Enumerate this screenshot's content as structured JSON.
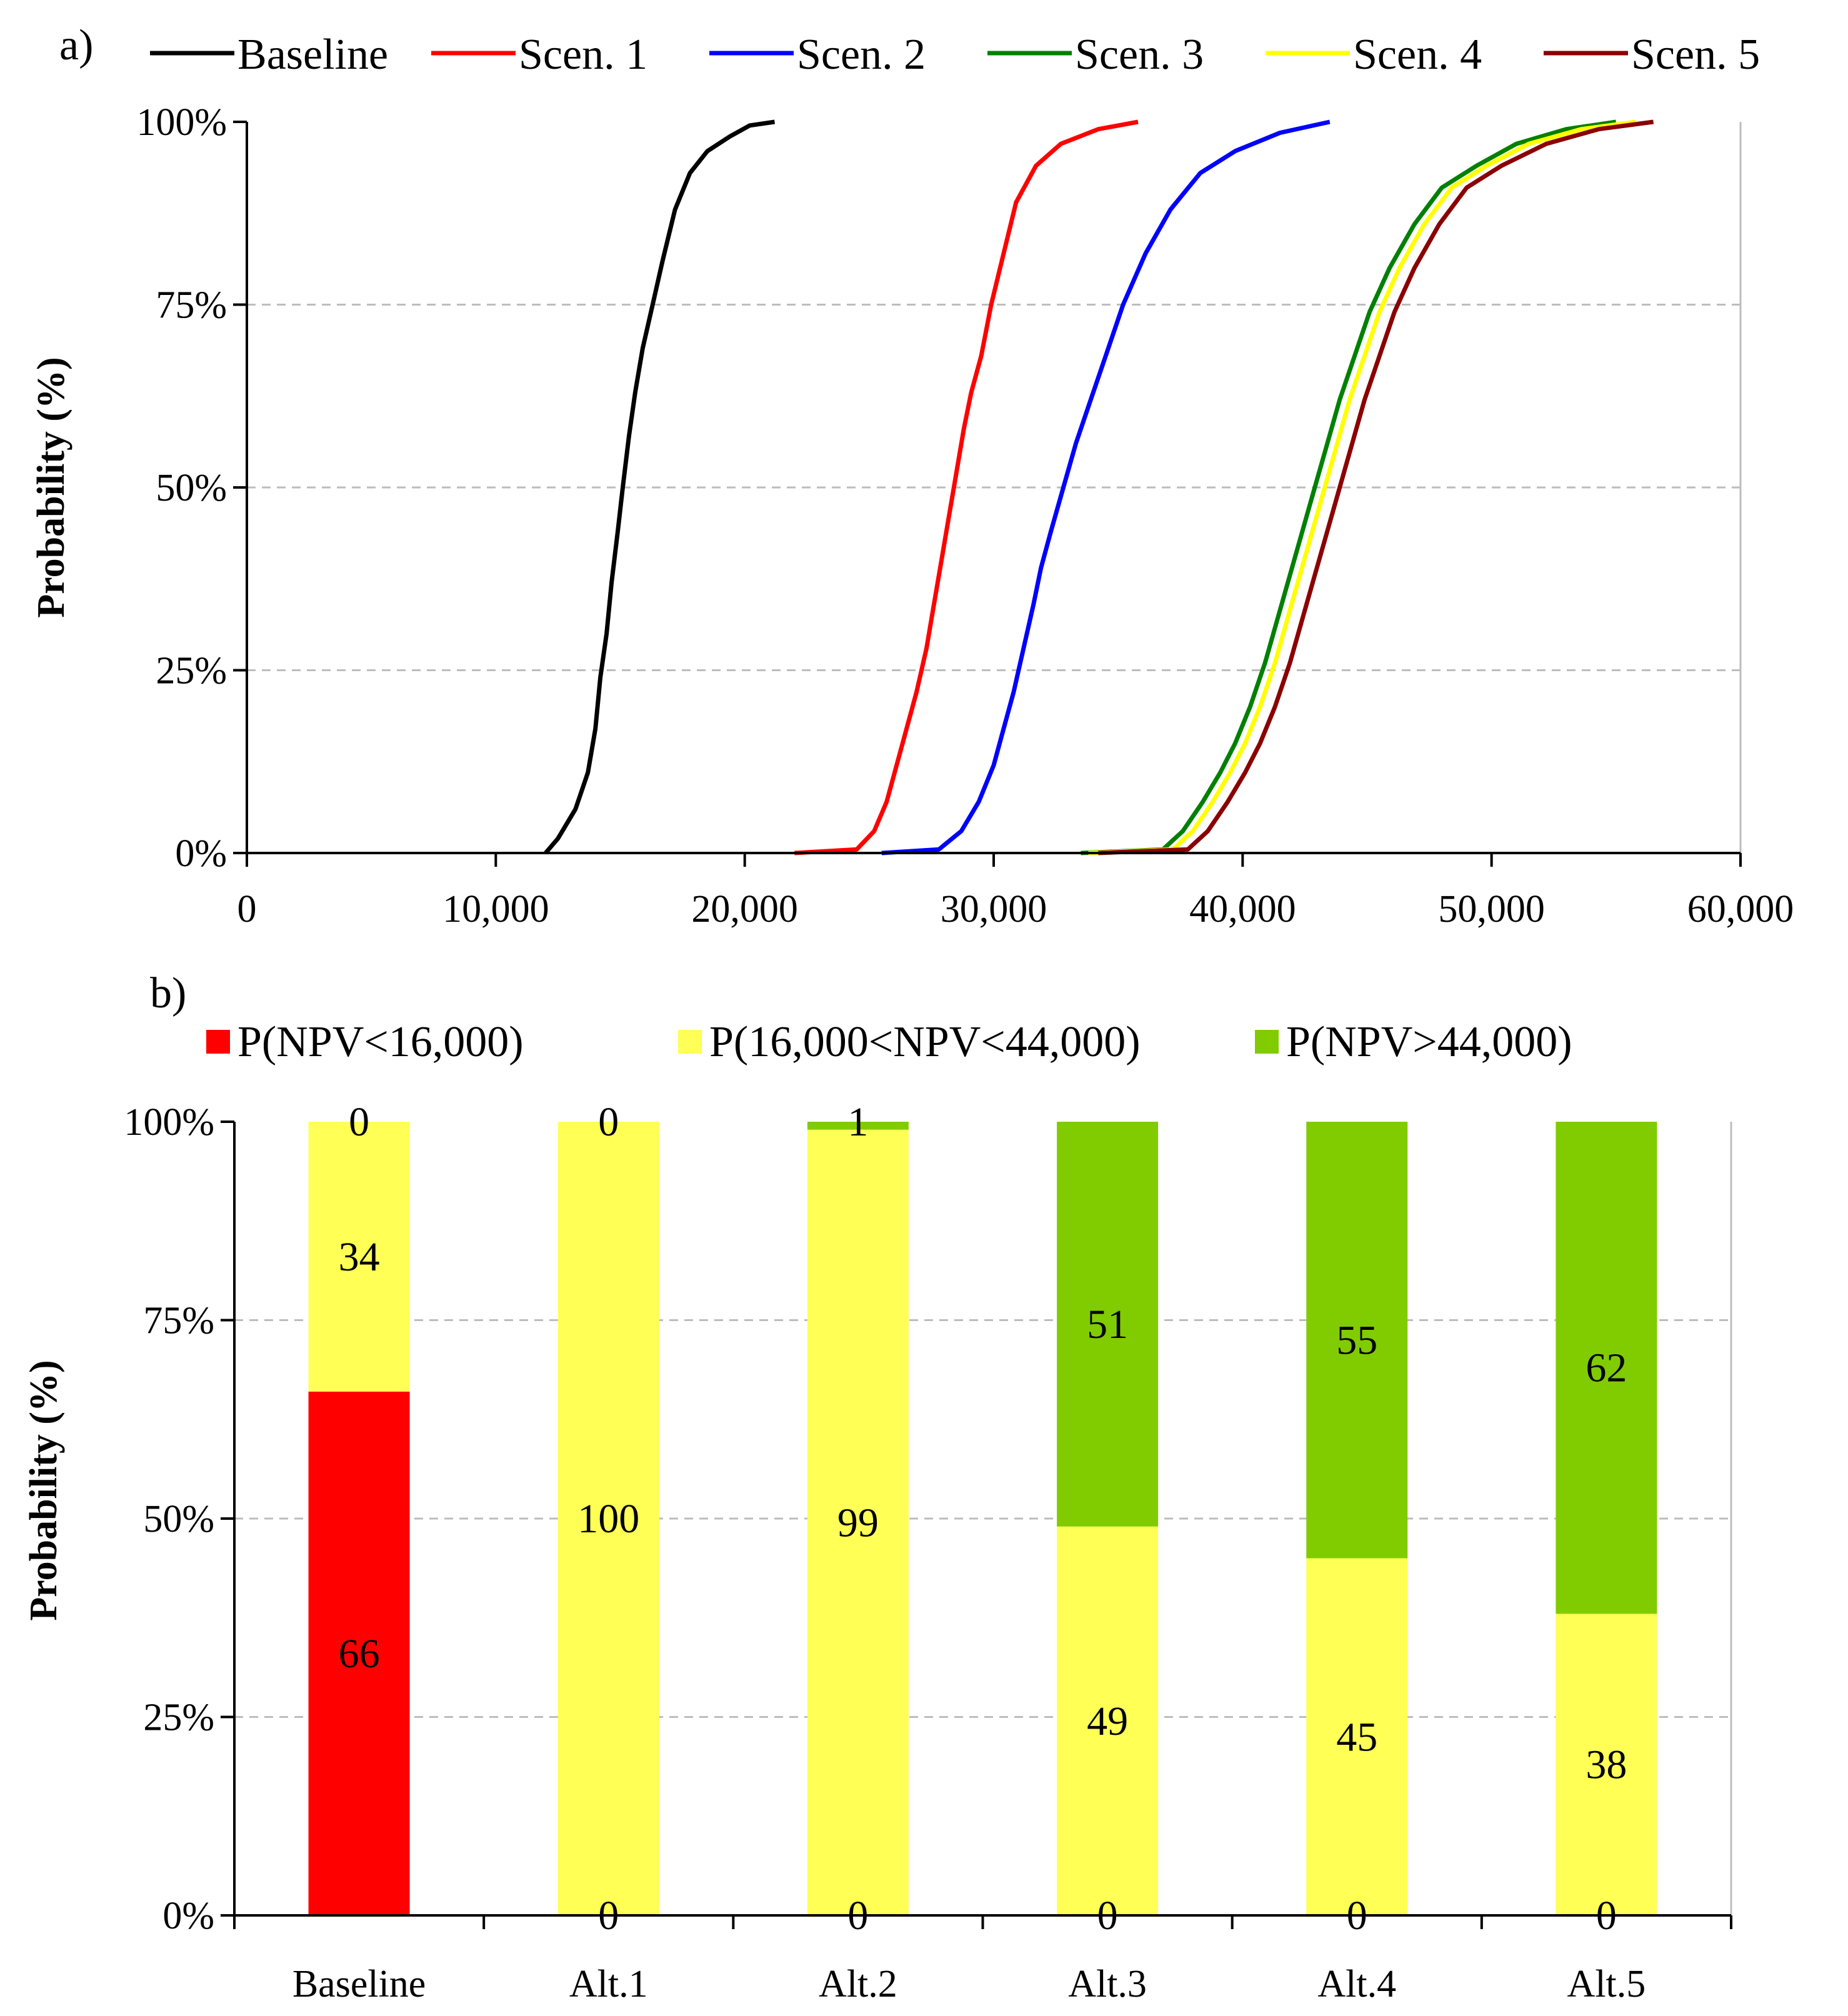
{
  "chart_data": [
    {
      "panel_label": "a)",
      "type": "line",
      "subtype": "cumulative distribution",
      "title": "",
      "xlabel": "",
      "ylabel": "Probability (%)",
      "xlim": [
        0,
        60000
      ],
      "ylim": [
        0,
        100
      ],
      "x_ticks": [
        "0",
        "10,000",
        "20,000",
        "30,000",
        "40,000",
        "50,000",
        "60,000"
      ],
      "y_ticks": [
        "0%",
        "25%",
        "50%",
        "75%",
        "100%"
      ],
      "grid": "horizontal dashed",
      "legend_position": "top",
      "series": [
        {
          "name": "Baseline",
          "color": "#000000",
          "points": [
            [
              12000,
              0
            ],
            [
              12500,
              2
            ],
            [
              13200,
              6
            ],
            [
              13700,
              11
            ],
            [
              14000,
              17
            ],
            [
              14200,
              24
            ],
            [
              14450,
              30
            ],
            [
              14650,
              37
            ],
            [
              14900,
              44
            ],
            [
              15100,
              50
            ],
            [
              15350,
              57
            ],
            [
              15600,
              63
            ],
            [
              15900,
              69
            ],
            [
              16300,
              75
            ],
            [
              16700,
              81
            ],
            [
              17200,
              88
            ],
            [
              17800,
              93
            ],
            [
              18500,
              96
            ],
            [
              19400,
              98
            ],
            [
              20200,
              99.5
            ],
            [
              21200,
              100
            ]
          ]
        },
        {
          "name": "Scen. 1",
          "color": "#ff0000",
          "points": [
            [
              22000,
              0
            ],
            [
              24500,
              0.5
            ],
            [
              25200,
              3
            ],
            [
              25700,
              7
            ],
            [
              26100,
              12
            ],
            [
              26500,
              17
            ],
            [
              26900,
              22
            ],
            [
              27300,
              28
            ],
            [
              27600,
              34
            ],
            [
              27900,
              40
            ],
            [
              28200,
              46
            ],
            [
              28500,
              52
            ],
            [
              28800,
              58
            ],
            [
              29100,
              63
            ],
            [
              29500,
              68
            ],
            [
              29900,
              75
            ],
            [
              30400,
              82
            ],
            [
              30900,
              89
            ],
            [
              31700,
              94
            ],
            [
              32700,
              97
            ],
            [
              34200,
              99
            ],
            [
              35800,
              100
            ]
          ]
        },
        {
          "name": "Scen. 2",
          "color": "#0000ff",
          "points": [
            [
              25500,
              0
            ],
            [
              27800,
              0.5
            ],
            [
              28700,
              3
            ],
            [
              29400,
              7
            ],
            [
              30000,
              12
            ],
            [
              30400,
              17
            ],
            [
              30800,
              22
            ],
            [
              31200,
              28
            ],
            [
              31600,
              34
            ],
            [
              31900,
              39
            ],
            [
              32300,
              44
            ],
            [
              32800,
              50
            ],
            [
              33300,
              56
            ],
            [
              33900,
              62
            ],
            [
              34500,
              68
            ],
            [
              35200,
              75
            ],
            [
              36100,
              82
            ],
            [
              37100,
              88
            ],
            [
              38300,
              93
            ],
            [
              39700,
              96
            ],
            [
              41500,
              98.5
            ],
            [
              43500,
              100
            ]
          ]
        },
        {
          "name": "Scen. 3",
          "color": "#008000",
          "points": [
            [
              33500,
              0
            ],
            [
              36800,
              0.5
            ],
            [
              37600,
              3
            ],
            [
              38400,
              7
            ],
            [
              39100,
              11
            ],
            [
              39700,
              15
            ],
            [
              40300,
              20
            ],
            [
              40900,
              26
            ],
            [
              41400,
              32
            ],
            [
              41900,
              38
            ],
            [
              42400,
              44
            ],
            [
              42900,
              50
            ],
            [
              43400,
              56
            ],
            [
              43900,
              62
            ],
            [
              44500,
              68
            ],
            [
              45100,
              74
            ],
            [
              45900,
              80
            ],
            [
              46900,
              86
            ],
            [
              48000,
              91
            ],
            [
              49400,
              94
            ],
            [
              51000,
              97
            ],
            [
              53000,
              99
            ],
            [
              55000,
              100
            ]
          ]
        },
        {
          "name": "Scen. 4",
          "color": "#ffff00",
          "points": [
            [
              33800,
              0
            ],
            [
              37200,
              0.5
            ],
            [
              38000,
              3
            ],
            [
              38800,
              7
            ],
            [
              39500,
              11
            ],
            [
              40100,
              15
            ],
            [
              40700,
              20
            ],
            [
              41300,
              26
            ],
            [
              41800,
              32
            ],
            [
              42300,
              38
            ],
            [
              42800,
              44
            ],
            [
              43300,
              50
            ],
            [
              43800,
              56
            ],
            [
              44300,
              62
            ],
            [
              44900,
              68
            ],
            [
              45500,
              74
            ],
            [
              46300,
              80
            ],
            [
              47300,
              86
            ],
            [
              48400,
              91
            ],
            [
              49800,
              94
            ],
            [
              51500,
              97
            ],
            [
              53600,
              99
            ],
            [
              55800,
              100
            ]
          ]
        },
        {
          "name": "Scen. 5",
          "color": "#8b0000",
          "points": [
            [
              34200,
              0
            ],
            [
              37800,
              0.5
            ],
            [
              38600,
              3
            ],
            [
              39400,
              7
            ],
            [
              40100,
              11
            ],
            [
              40700,
              15
            ],
            [
              41300,
              20
            ],
            [
              41900,
              26
            ],
            [
              42400,
              32
            ],
            [
              42900,
              38
            ],
            [
              43400,
              44
            ],
            [
              43900,
              50
            ],
            [
              44400,
              56
            ],
            [
              44900,
              62
            ],
            [
              45500,
              68
            ],
            [
              46100,
              74
            ],
            [
              46900,
              80
            ],
            [
              47900,
              86
            ],
            [
              49000,
              91
            ],
            [
              50400,
              94
            ],
            [
              52200,
              97
            ],
            [
              54300,
              99
            ],
            [
              56500,
              100
            ]
          ]
        }
      ]
    },
    {
      "panel_label": "b)",
      "type": "bar",
      "subtype": "stacked 100%",
      "title": "",
      "xlabel": "",
      "ylabel": "Probability (%)",
      "ylim": [
        0,
        100
      ],
      "y_ticks": [
        "0%",
        "25%",
        "50%",
        "75%",
        "100%"
      ],
      "grid": "horizontal dashed",
      "legend_position": "top",
      "categories": [
        "Baseline",
        "Alt.1",
        "Alt.2",
        "Alt.3",
        "Alt.4",
        "Alt.5"
      ],
      "series": [
        {
          "name": "P(NPV<16,000)",
          "color": "#ff0000",
          "values": [
            66,
            0,
            0,
            0,
            0,
            0
          ],
          "labels": [
            "66",
            "0",
            "0",
            "0",
            "0",
            "0"
          ]
        },
        {
          "name": "P(16,000<NPV<44,000)",
          "color": "#ffff55",
          "values": [
            34,
            100,
            99,
            49,
            45,
            38
          ],
          "labels": [
            "34",
            "100",
            "99",
            "49",
            "45",
            "38"
          ]
        },
        {
          "name": "P(NPV>44,000)",
          "color": "#80cc00",
          "values": [
            0,
            0,
            1,
            51,
            55,
            62
          ],
          "labels": [
            "0",
            "0",
            "1",
            "51",
            "55",
            "62"
          ]
        }
      ]
    }
  ]
}
